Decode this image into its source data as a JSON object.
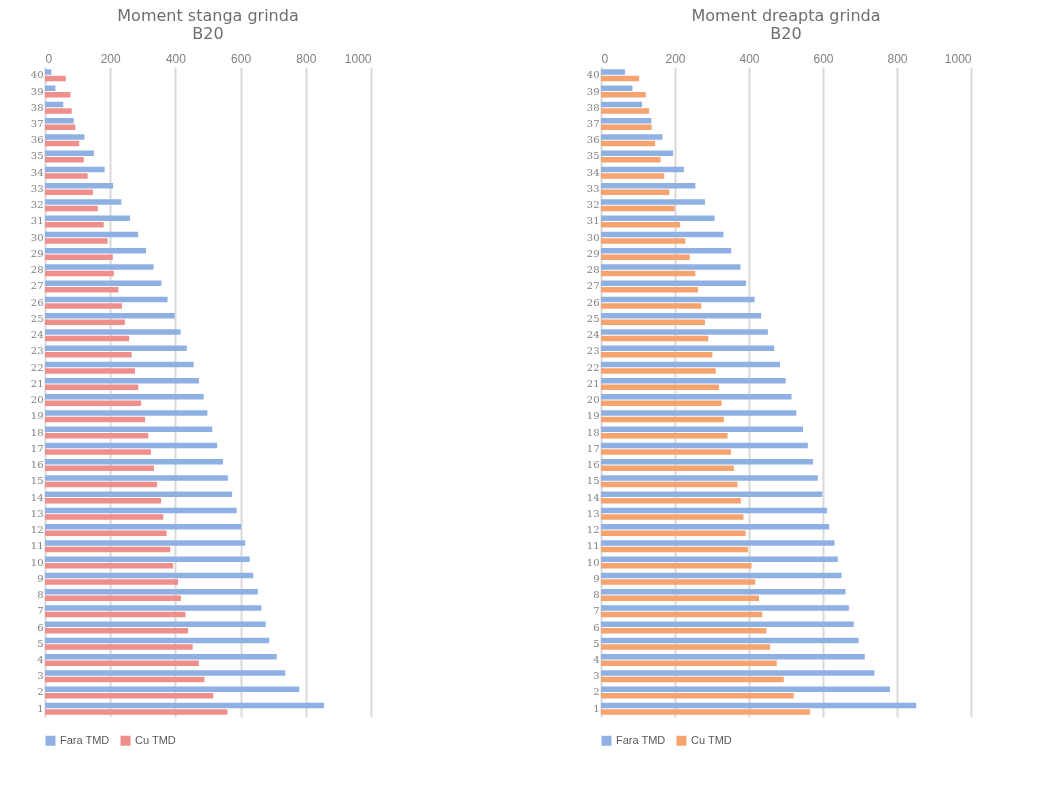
{
  "chart_data": [
    {
      "type": "bar",
      "orientation": "horizontal",
      "title": "Moment stanga grinda\nB20",
      "categories": [
        "40",
        "39",
        "38",
        "37",
        "36",
        "35",
        "34",
        "33",
        "32",
        "31",
        "30",
        "29",
        "28",
        "27",
        "26",
        "25",
        "24",
        "23",
        "22",
        "21",
        "20",
        "19",
        "18",
        "17",
        "16",
        "15",
        "14",
        "13",
        "12",
        "11",
        "10",
        "9",
        "8",
        "7",
        "6",
        "5",
        "4",
        "3",
        "2",
        "1"
      ],
      "series": [
        {
          "name": "Fara TMD",
          "color": "#8fb0e3",
          "values": [
            20,
            32,
            56,
            88,
            121,
            150,
            183,
            209,
            234,
            261,
            286,
            310,
            333,
            357,
            376,
            398,
            416,
            435,
            456,
            472,
            487,
            498,
            513,
            528,
            546,
            561,
            574,
            588,
            602,
            614,
            628,
            639,
            653,
            664,
            677,
            688,
            711,
            737,
            780,
            856
          ]
        },
        {
          "name": "Cu TMD",
          "color": "#ee8f8c",
          "values": [
            64,
            78,
            82,
            93,
            105,
            119,
            131,
            147,
            162,
            180,
            192,
            208,
            211,
            225,
            236,
            245,
            258,
            266,
            276,
            286,
            295,
            307,
            317,
            325,
            334,
            344,
            356,
            363,
            373,
            384,
            393,
            408,
            417,
            431,
            439,
            453,
            472,
            489,
            516,
            560
          ]
        }
      ],
      "xlim": [
        0,
        1000
      ],
      "xticks": [
        0,
        200,
        400,
        600,
        800,
        1000
      ],
      "grid": "x",
      "legend": "bottom"
    },
    {
      "type": "bar",
      "orientation": "horizontal",
      "title": "Moment dreapta grinda\nB20",
      "categories": [
        "40",
        "39",
        "38",
        "37",
        "36",
        "35",
        "34",
        "33",
        "32",
        "31",
        "30",
        "29",
        "28",
        "27",
        "26",
        "25",
        "24",
        "23",
        "22",
        "21",
        "20",
        "19",
        "18",
        "17",
        "16",
        "15",
        "14",
        "13",
        "12",
        "11",
        "10",
        "9",
        "8",
        "7",
        "6",
        "5",
        "4",
        "3",
        "2",
        "1"
      ],
      "series": [
        {
          "name": "Fara TMD",
          "color": "#8fb0e3",
          "values": [
            65,
            85,
            111,
            136,
            166,
            195,
            224,
            255,
            281,
            307,
            331,
            352,
            377,
            392,
            415,
            433,
            451,
            468,
            484,
            499,
            515,
            528,
            546,
            559,
            573,
            586,
            598,
            611,
            617,
            631,
            640,
            650,
            661,
            670,
            683,
            696,
            713,
            739,
            781,
            852
          ]
        },
        {
          "name": "Cu TMD",
          "color": "#f6a36f",
          "values": [
            103,
            121,
            130,
            137,
            146,
            161,
            171,
            185,
            199,
            214,
            228,
            240,
            255,
            262,
            271,
            281,
            290,
            301,
            310,
            319,
            326,
            332,
            342,
            351,
            359,
            369,
            378,
            385,
            391,
            397,
            407,
            417,
            427,
            436,
            447,
            457,
            475,
            494,
            521,
            565
          ]
        }
      ],
      "xlim": [
        0,
        1000
      ],
      "xticks": [
        0,
        200,
        400,
        600,
        800,
        1000
      ],
      "grid": "x",
      "legend": "bottom"
    }
  ]
}
